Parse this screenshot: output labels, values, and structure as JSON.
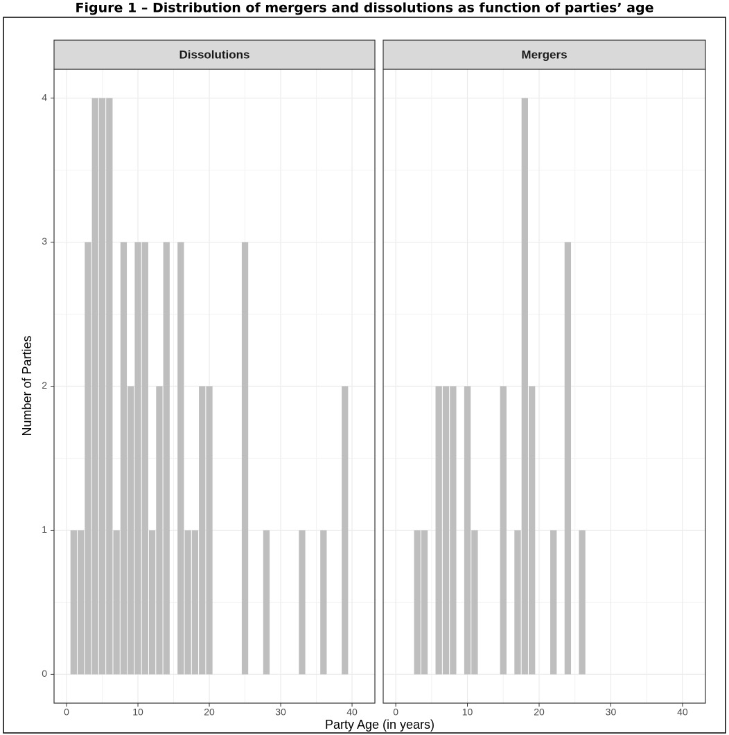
{
  "figure_title": "Figure 1 – Distribution of mergers and dissolutions as function of parties’ age",
  "x_label": "Party Age (in years)",
  "y_label": "Number of Parties",
  "chart_data": [
    {
      "type": "bar",
      "title": "Dissolutions",
      "x": [
        1,
        2,
        3,
        4,
        5,
        6,
        7,
        8,
        9,
        10,
        11,
        12,
        13,
        14,
        16,
        17,
        18,
        19,
        20,
        25,
        28,
        33,
        36,
        39
      ],
      "values": [
        1,
        1,
        3,
        4,
        4,
        4,
        1,
        3,
        2,
        3,
        3,
        1,
        2,
        3,
        3,
        1,
        1,
        2,
        2,
        3,
        1,
        1,
        1,
        2
      ],
      "color": "#bebebe",
      "xlim": [
        -1.75,
        43.2
      ],
      "xticks": [
        0,
        10,
        20,
        30,
        40
      ],
      "ylim": [
        -0.2,
        4.2
      ],
      "yticks": [
        0,
        1,
        2,
        3,
        4
      ],
      "grid": true
    },
    {
      "type": "bar",
      "title": "Mergers",
      "x": [
        3,
        4,
        6,
        7,
        8,
        10,
        11,
        15,
        17,
        18,
        19,
        22,
        24,
        26
      ],
      "values": [
        1,
        1,
        2,
        2,
        2,
        2,
        1,
        2,
        1,
        4,
        2,
        1,
        3,
        1
      ],
      "color": "#bebebe",
      "xlim": [
        -1.75,
        43.2
      ],
      "xticks": [
        0,
        10,
        20,
        30,
        40
      ],
      "ylim": [
        -0.2,
        4.2
      ],
      "yticks": [
        0,
        1,
        2,
        3,
        4
      ],
      "grid": true
    }
  ]
}
